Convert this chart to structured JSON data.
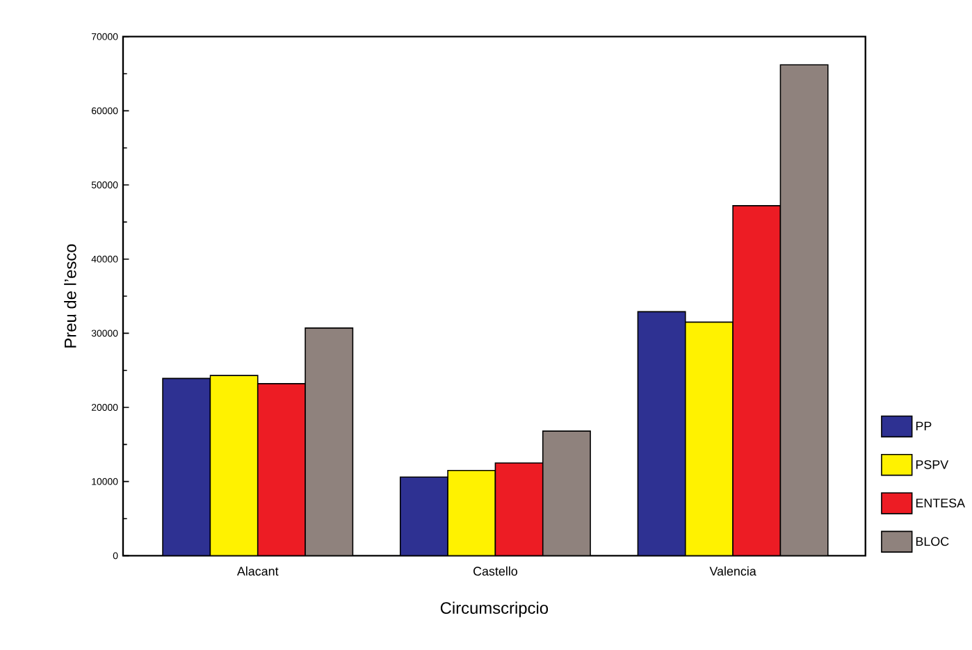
{
  "chart_data": {
    "type": "bar",
    "xlabel": "Circumscripcio",
    "ylabel": "Preu de l’esco",
    "categories": [
      "Alacant",
      "Castello",
      "Valencia"
    ],
    "series": [
      {
        "name": "PP",
        "color": "#2e3192",
        "values": [
          23900,
          10600,
          32900
        ]
      },
      {
        "name": "PSPV",
        "color": "#fff200",
        "values": [
          24300,
          11500,
          31500
        ]
      },
      {
        "name": "ENTESA",
        "color": "#ed1c24",
        "values": [
          23200,
          12500,
          47200
        ]
      },
      {
        "name": "BLOC",
        "color": "#8f827d",
        "values": [
          30700,
          16800,
          66200
        ]
      }
    ],
    "ylim": [
      0,
      70000
    ],
    "yticks": [
      0,
      10000,
      20000,
      30000,
      40000,
      50000,
      60000,
      70000
    ],
    "grid": false,
    "legend": "right"
  }
}
